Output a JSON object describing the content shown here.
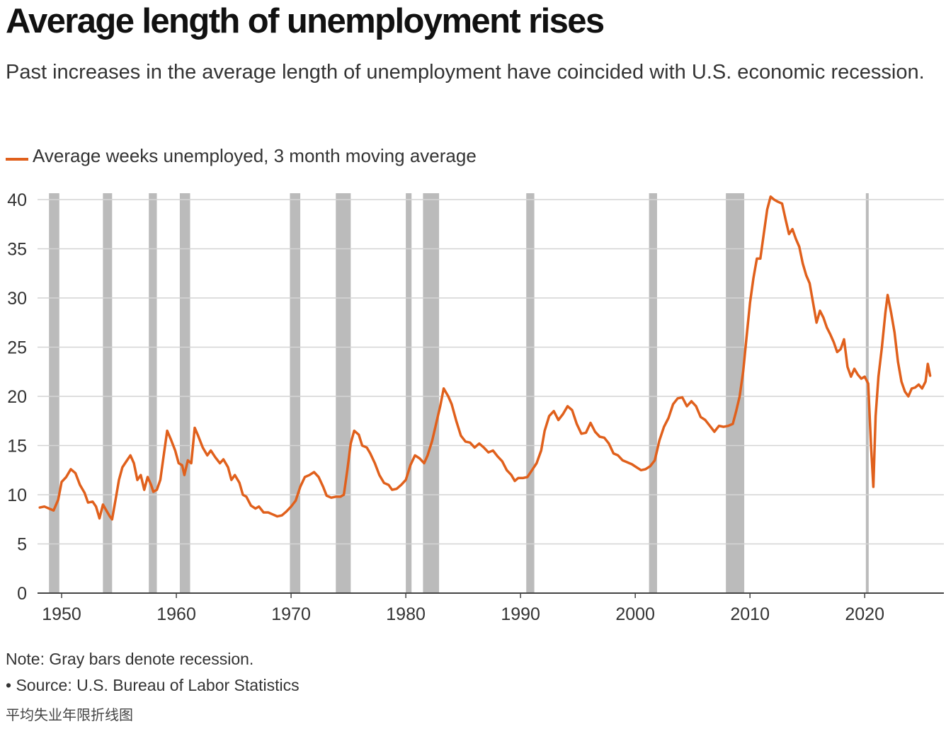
{
  "title": "Average length of unemployment rises",
  "subtitle": "Past increases in the average length of unemployment have coincided with U.S. economic recession.",
  "colors": {
    "line": "#e0601c",
    "recession": "#bbbbbb",
    "grid": "#d4d4d4",
    "axis": "#444444"
  },
  "note": "Note: Gray bars denote recession.",
  "source": "• Source: U.S. Bureau of Labor Statistics",
  "caption": "平均失业年限折线图",
  "chart_data": {
    "type": "line",
    "title": "Average length of unemployment rises",
    "xlabel": "",
    "ylabel": "",
    "xlim": [
      1947.9,
      2026.9
    ],
    "ylim": [
      0,
      40
    ],
    "y_ticks": [
      "0",
      "5",
      "10",
      "15",
      "20",
      "25",
      "30",
      "35",
      "40"
    ],
    "x_ticks": [
      "1950",
      "1960",
      "1970",
      "1980",
      "1990",
      "2000",
      "2010",
      "2020"
    ],
    "grid": true,
    "legend": "top-left",
    "series": [
      {
        "name": "Average weeks unemployed, 3 month moving average",
        "points": [
          [
            1948.1,
            8.7
          ],
          [
            1948.5,
            8.8
          ],
          [
            1948.9,
            8.6
          ],
          [
            1949.3,
            8.4
          ],
          [
            1949.7,
            9.5
          ],
          [
            1950.0,
            11.3
          ],
          [
            1950.4,
            11.8
          ],
          [
            1950.8,
            12.6
          ],
          [
            1951.2,
            12.2
          ],
          [
            1951.6,
            11.0
          ],
          [
            1952.0,
            10.2
          ],
          [
            1952.3,
            9.2
          ],
          [
            1952.7,
            9.3
          ],
          [
            1953.0,
            8.8
          ],
          [
            1953.3,
            7.6
          ],
          [
            1953.6,
            9.0
          ],
          [
            1953.9,
            8.4
          ],
          [
            1954.2,
            7.8
          ],
          [
            1954.4,
            7.5
          ],
          [
            1954.7,
            9.5
          ],
          [
            1955.0,
            11.5
          ],
          [
            1955.3,
            12.8
          ],
          [
            1955.7,
            13.5
          ],
          [
            1956.0,
            14.0
          ],
          [
            1956.3,
            13.2
          ],
          [
            1956.6,
            11.5
          ],
          [
            1956.9,
            12.0
          ],
          [
            1957.2,
            10.5
          ],
          [
            1957.5,
            11.8
          ],
          [
            1957.8,
            11.0
          ],
          [
            1958.0,
            10.3
          ],
          [
            1958.3,
            10.5
          ],
          [
            1958.6,
            11.5
          ],
          [
            1958.9,
            14.0
          ],
          [
            1959.2,
            16.5
          ],
          [
            1959.5,
            15.7
          ],
          [
            1959.9,
            14.5
          ],
          [
            1960.2,
            13.2
          ],
          [
            1960.5,
            13.0
          ],
          [
            1960.7,
            12.0
          ],
          [
            1961.0,
            13.5
          ],
          [
            1961.3,
            13.2
          ],
          [
            1961.6,
            16.8
          ],
          [
            1961.9,
            16.0
          ],
          [
            1962.3,
            14.8
          ],
          [
            1962.7,
            14.0
          ],
          [
            1963.0,
            14.5
          ],
          [
            1963.4,
            13.8
          ],
          [
            1963.8,
            13.2
          ],
          [
            1964.1,
            13.6
          ],
          [
            1964.5,
            12.8
          ],
          [
            1964.8,
            11.5
          ],
          [
            1965.1,
            12.0
          ],
          [
            1965.5,
            11.2
          ],
          [
            1965.8,
            10.0
          ],
          [
            1966.1,
            9.8
          ],
          [
            1966.5,
            8.9
          ],
          [
            1966.9,
            8.6
          ],
          [
            1967.2,
            8.8
          ],
          [
            1967.6,
            8.2
          ],
          [
            1968.0,
            8.2
          ],
          [
            1968.4,
            8.0
          ],
          [
            1968.8,
            7.8
          ],
          [
            1969.2,
            7.9
          ],
          [
            1969.6,
            8.3
          ],
          [
            1970.0,
            8.8
          ],
          [
            1970.4,
            9.4
          ],
          [
            1970.8,
            10.8
          ],
          [
            1971.2,
            11.8
          ],
          [
            1971.6,
            12.0
          ],
          [
            1972.0,
            12.3
          ],
          [
            1972.4,
            11.8
          ],
          [
            1972.8,
            10.8
          ],
          [
            1973.1,
            9.9
          ],
          [
            1973.5,
            9.7
          ],
          [
            1973.9,
            9.8
          ],
          [
            1974.3,
            9.8
          ],
          [
            1974.6,
            10.0
          ],
          [
            1974.9,
            12.5
          ],
          [
            1975.2,
            15.2
          ],
          [
            1975.5,
            16.5
          ],
          [
            1975.9,
            16.1
          ],
          [
            1976.2,
            15.0
          ],
          [
            1976.6,
            14.8
          ],
          [
            1976.9,
            14.2
          ],
          [
            1977.3,
            13.2
          ],
          [
            1977.7,
            12.0
          ],
          [
            1978.1,
            11.2
          ],
          [
            1978.5,
            11.0
          ],
          [
            1978.8,
            10.5
          ],
          [
            1979.2,
            10.6
          ],
          [
            1979.6,
            11.0
          ],
          [
            1980.0,
            11.5
          ],
          [
            1980.4,
            13.0
          ],
          [
            1980.8,
            14.0
          ],
          [
            1981.2,
            13.7
          ],
          [
            1981.6,
            13.2
          ],
          [
            1981.9,
            14.0
          ],
          [
            1982.3,
            15.5
          ],
          [
            1982.7,
            17.5
          ],
          [
            1983.0,
            19.0
          ],
          [
            1983.3,
            20.8
          ],
          [
            1983.7,
            20.0
          ],
          [
            1984.0,
            19.2
          ],
          [
            1984.4,
            17.5
          ],
          [
            1984.8,
            16.0
          ],
          [
            1985.2,
            15.4
          ],
          [
            1985.6,
            15.3
          ],
          [
            1986.0,
            14.8
          ],
          [
            1986.4,
            15.2
          ],
          [
            1986.8,
            14.8
          ],
          [
            1987.2,
            14.3
          ],
          [
            1987.6,
            14.5
          ],
          [
            1988.0,
            13.9
          ],
          [
            1988.4,
            13.4
          ],
          [
            1988.8,
            12.5
          ],
          [
            1989.2,
            12.0
          ],
          [
            1989.5,
            11.4
          ],
          [
            1989.8,
            11.7
          ],
          [
            1990.2,
            11.7
          ],
          [
            1990.6,
            11.8
          ],
          [
            1991.0,
            12.5
          ],
          [
            1991.4,
            13.2
          ],
          [
            1991.8,
            14.5
          ],
          [
            1992.1,
            16.5
          ],
          [
            1992.5,
            18.0
          ],
          [
            1992.9,
            18.5
          ],
          [
            1993.3,
            17.6
          ],
          [
            1993.7,
            18.2
          ],
          [
            1994.1,
            19.0
          ],
          [
            1994.5,
            18.6
          ],
          [
            1994.9,
            17.2
          ],
          [
            1995.3,
            16.2
          ],
          [
            1995.7,
            16.3
          ],
          [
            1996.1,
            17.3
          ],
          [
            1996.5,
            16.4
          ],
          [
            1996.9,
            15.9
          ],
          [
            1997.3,
            15.8
          ],
          [
            1997.7,
            15.2
          ],
          [
            1998.1,
            14.2
          ],
          [
            1998.5,
            14.0
          ],
          [
            1998.9,
            13.5
          ],
          [
            1999.3,
            13.3
          ],
          [
            1999.7,
            13.1
          ],
          [
            2000.1,
            12.8
          ],
          [
            2000.5,
            12.5
          ],
          [
            2000.9,
            12.6
          ],
          [
            2001.3,
            12.9
          ],
          [
            2001.7,
            13.5
          ],
          [
            2002.1,
            15.5
          ],
          [
            2002.5,
            16.9
          ],
          [
            2002.9,
            17.8
          ],
          [
            2003.3,
            19.2
          ],
          [
            2003.7,
            19.8
          ],
          [
            2004.1,
            19.9
          ],
          [
            2004.5,
            19.0
          ],
          [
            2004.9,
            19.5
          ],
          [
            2005.3,
            19.0
          ],
          [
            2005.7,
            17.9
          ],
          [
            2006.1,
            17.6
          ],
          [
            2006.5,
            17.0
          ],
          [
            2006.9,
            16.4
          ],
          [
            2007.3,
            17.0
          ],
          [
            2007.7,
            16.9
          ],
          [
            2008.1,
            17.0
          ],
          [
            2008.5,
            17.2
          ],
          [
            2008.8,
            18.5
          ],
          [
            2009.1,
            20.0
          ],
          [
            2009.4,
            22.5
          ],
          [
            2009.7,
            26.0
          ],
          [
            2010.0,
            29.5
          ],
          [
            2010.3,
            32.0
          ],
          [
            2010.6,
            34.0
          ],
          [
            2010.9,
            34.0
          ],
          [
            2011.2,
            36.5
          ],
          [
            2011.5,
            39.0
          ],
          [
            2011.8,
            40.3
          ],
          [
            2012.1,
            40.0
          ],
          [
            2012.4,
            39.8
          ],
          [
            2012.8,
            39.6
          ],
          [
            2013.1,
            38.0
          ],
          [
            2013.4,
            36.5
          ],
          [
            2013.7,
            37.0
          ],
          [
            2014.0,
            36.0
          ],
          [
            2014.3,
            35.2
          ],
          [
            2014.6,
            33.5
          ],
          [
            2014.9,
            32.3
          ],
          [
            2015.2,
            31.5
          ],
          [
            2015.5,
            29.5
          ],
          [
            2015.8,
            27.5
          ],
          [
            2016.1,
            28.7
          ],
          [
            2016.4,
            28.0
          ],
          [
            2016.7,
            27.0
          ],
          [
            2017.0,
            26.3
          ],
          [
            2017.3,
            25.5
          ],
          [
            2017.6,
            24.5
          ],
          [
            2017.9,
            24.8
          ],
          [
            2018.2,
            25.8
          ],
          [
            2018.5,
            23.0
          ],
          [
            2018.8,
            22.0
          ],
          [
            2019.1,
            22.8
          ],
          [
            2019.4,
            22.2
          ],
          [
            2019.7,
            21.8
          ],
          [
            2020.0,
            22.0
          ],
          [
            2020.3,
            21.3
          ],
          [
            2020.55,
            15.0
          ],
          [
            2020.75,
            10.8
          ],
          [
            2020.95,
            18.0
          ],
          [
            2021.2,
            22.0
          ],
          [
            2021.5,
            25.0
          ],
          [
            2021.8,
            28.5
          ],
          [
            2022.0,
            30.3
          ],
          [
            2022.3,
            28.5
          ],
          [
            2022.6,
            26.5
          ],
          [
            2022.9,
            23.5
          ],
          [
            2023.2,
            21.5
          ],
          [
            2023.5,
            20.5
          ],
          [
            2023.8,
            20.0
          ],
          [
            2024.1,
            20.8
          ],
          [
            2024.4,
            20.9
          ],
          [
            2024.7,
            21.2
          ],
          [
            2025.0,
            20.8
          ],
          [
            2025.3,
            21.5
          ],
          [
            2025.5,
            23.3
          ],
          [
            2025.7,
            22.1
          ]
        ]
      }
    ],
    "recessions": [
      [
        1948.9,
        1949.8
      ],
      [
        1953.6,
        1954.4
      ],
      [
        1957.6,
        1958.3
      ],
      [
        1960.3,
        1961.2
      ],
      [
        1969.9,
        1970.8
      ],
      [
        1973.9,
        1975.2
      ],
      [
        1980.0,
        1980.5
      ],
      [
        1981.5,
        1982.9
      ],
      [
        1990.5,
        1991.2
      ],
      [
        2001.2,
        2001.9
      ],
      [
        2007.9,
        2009.5
      ],
      [
        2020.1,
        2020.3
      ]
    ]
  }
}
